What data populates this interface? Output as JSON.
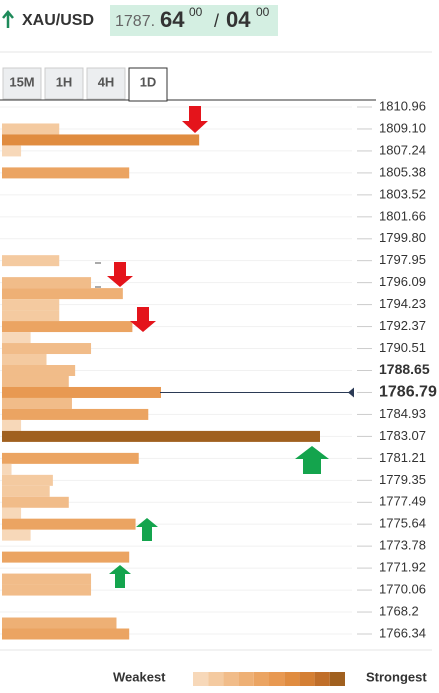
{
  "header": {
    "symbol": "XAU/USD",
    "price_main": "1787.",
    "price_big": "64",
    "price_small": "00",
    "separator": "/",
    "ask_big": "04",
    "ask_small": "00"
  },
  "tabs": [
    "15M",
    "1H",
    "4H",
    "1D"
  ],
  "chart_data": {
    "type": "bar",
    "orientation": "horizontal",
    "prices": [
      1809.1,
      1808.17,
      1807.24,
      1805.38,
      1797.95,
      1796.09,
      1795.16,
      1794.23,
      1793.3,
      1792.37,
      1791.44,
      1790.51,
      1789.58,
      1788.65,
      1787.72,
      1786.79,
      1785.86,
      1784.93,
      1784.0,
      1783.07,
      1781.21,
      1780.28,
      1779.35,
      1778.42,
      1777.49,
      1776.56,
      1775.64,
      1774.71,
      1772.85,
      1770.99,
      1770.06,
      1767.27,
      1766.34
    ],
    "values": [
      18,
      62,
      6,
      40,
      18,
      28,
      38,
      18,
      18,
      41,
      9,
      28,
      14,
      23,
      21,
      50,
      22,
      46,
      6,
      100,
      43,
      3,
      16,
      15,
      21,
      6,
      42,
      9,
      40,
      28,
      28,
      36,
      40
    ],
    "colors": [
      "#f7d8b9",
      "#f4caa0",
      "#f1bc89",
      "#eeb075",
      "#eba462",
      "#e89952",
      "#e08c40",
      "#d47f34",
      "#c06e29",
      "#a0601f"
    ],
    "xlim": [
      0,
      100
    ],
    "ylim": [
      1766.34,
      1810.96
    ],
    "yticks": [
      1810.96,
      {
        "value": 1809.1,
        "label": "1809.10"
      },
      1807.24,
      1805.38,
      1803.52,
      1801.66,
      {
        "value": 1799.8,
        "label": "1799.80"
      },
      1797.95,
      1796.09,
      1794.23,
      1792.37,
      1790.51,
      1788.65,
      1786.79,
      1784.93,
      1783.07,
      1781.21,
      1779.35,
      1777.49,
      1775.64,
      1773.78,
      1771.92,
      1770.06,
      1768.2,
      1766.34
    ],
    "bold_ticks": [
      1788.65,
      1786.79
    ],
    "current_price": 1786.79,
    "legend_low": "Weakest",
    "legend_high": "Strongest"
  }
}
